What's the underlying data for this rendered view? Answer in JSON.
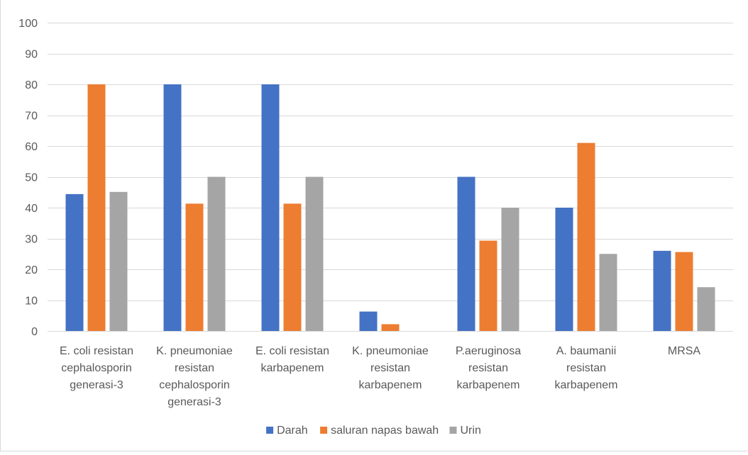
{
  "chart_data": {
    "type": "bar",
    "title": "",
    "xlabel": "",
    "ylabel": "",
    "ylim": [
      0,
      100
    ],
    "yticks": [
      0,
      10,
      20,
      30,
      40,
      50,
      60,
      70,
      80,
      90,
      100
    ],
    "grid": true,
    "legend_position": "bottom",
    "categories": [
      [
        "E. coli resistan",
        "cephalosporin",
        "generasi-3"
      ],
      [
        "K. pneumoniae",
        "resistan",
        "cephalosporin",
        "generasi-3"
      ],
      [
        "E. coli resistan",
        "karbapenem"
      ],
      [
        "K. pneumoniae",
        "resistan",
        "karbapenem"
      ],
      [
        "P.aeruginosa",
        "resistan",
        "karbapenem"
      ],
      [
        "A. baumanii",
        "resistan",
        "karbapenem"
      ],
      [
        "MRSA"
      ]
    ],
    "series": [
      {
        "name": "Darah",
        "color": "#4472c4",
        "values": [
          44.4,
          80,
          80,
          6.3,
          50,
          40,
          26
        ]
      },
      {
        "name": "saluran napas bawah",
        "color": "#ed7d31",
        "values": [
          80,
          41.3,
          41.3,
          2.2,
          29.3,
          61,
          25.6
        ]
      },
      {
        "name": "Urin",
        "color": "#a5a5a5",
        "values": [
          45.1,
          50,
          50,
          0,
          40,
          25,
          14.2
        ]
      }
    ]
  }
}
